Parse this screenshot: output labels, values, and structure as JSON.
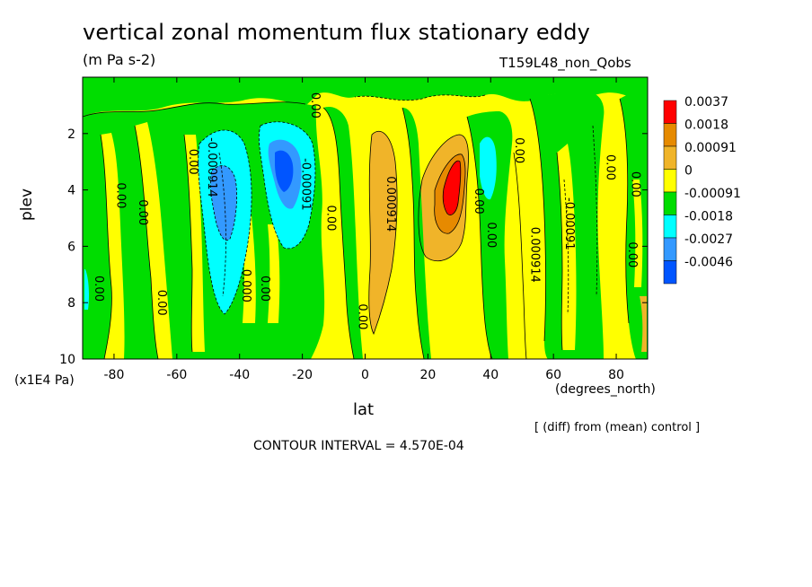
{
  "chart_data": {
    "type": "heatmap",
    "title": "vertical zonal momentum flux stationary eddy",
    "subtitle": "(m Pa s-2)",
    "run_label": "T159L48_non_Qobs",
    "xlabel": "lat",
    "x_unit": "(degrees_north)",
    "ylabel": "plev",
    "y_unit": "(x1E4 Pa)",
    "xlim": [
      -90,
      90
    ],
    "ylim": [
      10,
      0
    ],
    "x_ticks": [
      -80,
      -60,
      -40,
      -20,
      0,
      20,
      40,
      60,
      80
    ],
    "x_tick_labels": [
      "-80",
      "-60",
      "-40",
      "-20",
      "0",
      "20",
      "40",
      "60",
      "80"
    ],
    "y_ticks": [
      2,
      4,
      6,
      8,
      10
    ],
    "y_tick_labels": [
      "2",
      "4",
      "6",
      "8",
      "10"
    ],
    "note": "[ (diff) from (mean) control ]",
    "contour_interval": "CONTOUR INTERVAL = 4.570E-04",
    "legend": [
      {
        "label": "0.0037",
        "color": "#ff0000"
      },
      {
        "label": "0.0018",
        "color": "#e68a00"
      },
      {
        "label": "0.00091",
        "color": "#f0b429"
      },
      {
        "label": "0",
        "color": "#ffff00"
      },
      {
        "label": "-0.00091",
        "color": "#00dd00"
      },
      {
        "label": "-0.0018",
        "color": "#00ffff"
      },
      {
        "label": "-0.0027",
        "color": "#3399ff"
      },
      {
        "label": "-0.0046",
        "color": "#0055ff"
      }
    ],
    "legend_placement": "right",
    "contour_labels": [
      {
        "text": "0.00",
        "lat": -86,
        "p": 7.5
      },
      {
        "text": "0.00",
        "lat": -79,
        "p": 4.2
      },
      {
        "text": "0.00",
        "lat": -72,
        "p": 4.8
      },
      {
        "text": "0.00",
        "lat": -66,
        "p": 8.0
      },
      {
        "text": "0.00",
        "lat": -56,
        "p": 3.0
      },
      {
        "text": "-0.000914",
        "lat": -50,
        "p": 3.2
      },
      {
        "text": "0.000",
        "lat": -39,
        "p": 7.4
      },
      {
        "text": "0.00",
        "lat": -33,
        "p": 7.5
      },
      {
        "text": "-0.00091",
        "lat": -20,
        "p": 3.8
      },
      {
        "text": "0.00",
        "lat": -17,
        "p": 1.0
      },
      {
        "text": "0.00",
        "lat": -12,
        "p": 5.0
      },
      {
        "text": "0.000914",
        "lat": 7,
        "p": 4.5
      },
      {
        "text": "0.00",
        "lat": -2,
        "p": 8.5
      },
      {
        "text": "0.00",
        "lat": 35,
        "p": 4.4
      },
      {
        "text": "0.00",
        "lat": 39,
        "p": 5.6
      },
      {
        "text": "0.00",
        "lat": 48,
        "p": 2.6
      },
      {
        "text": "0.000914",
        "lat": 53,
        "p": 6.3
      },
      {
        "text": "-0.00091",
        "lat": 64,
        "p": 5.2
      },
      {
        "text": "0.00",
        "lat": 77,
        "p": 3.2
      },
      {
        "text": "0.00",
        "lat": 85,
        "p": 3.8
      },
      {
        "text": "0.00",
        "lat": 84,
        "p": 6.3
      }
    ]
  }
}
